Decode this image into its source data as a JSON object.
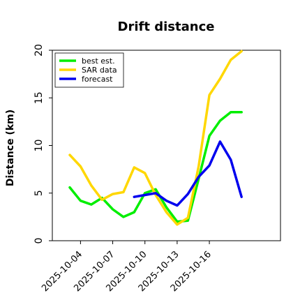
{
  "chart_data": {
    "type": "line",
    "title": "Drift distance",
    "xlabel": "",
    "ylabel": "Distance (km)",
    "ylim": [
      0,
      20
    ],
    "yticks": [
      0,
      5,
      10,
      15,
      20
    ],
    "xlim": [
      "2025-10-01T09:00",
      "2025-10-22T15:00"
    ],
    "xticks": [
      "2025-10-04",
      "2025-10-07",
      "2025-10-10",
      "2025-10-13",
      "2025-10-16"
    ],
    "grid": false,
    "legend_position": "top-left",
    "series": [
      {
        "name": "best est.",
        "color": "#00ee00",
        "x": [
          "2025-10-03",
          "2025-10-04",
          "2025-10-05",
          "2025-10-06",
          "2025-10-07",
          "2025-10-08",
          "2025-10-09",
          "2025-10-10",
          "2025-10-11",
          "2025-10-12",
          "2025-10-13",
          "2025-10-14",
          "2025-10-15",
          "2025-10-16",
          "2025-10-17",
          "2025-10-18",
          "2025-10-19"
        ],
        "values": [
          5.6,
          4.2,
          3.8,
          4.5,
          3.3,
          2.5,
          3.0,
          5.0,
          5.4,
          3.5,
          2.0,
          2.1,
          6.5,
          11.0,
          12.6,
          13.5,
          13.5
        ]
      },
      {
        "name": "SAR data",
        "color": "#ffd700",
        "x": [
          "2025-10-03",
          "2025-10-04",
          "2025-10-05",
          "2025-10-06",
          "2025-10-07",
          "2025-10-08",
          "2025-10-09",
          "2025-10-10",
          "2025-10-11",
          "2025-10-12",
          "2025-10-13",
          "2025-10-14",
          "2025-10-15",
          "2025-10-16",
          "2025-10-17",
          "2025-10-18",
          "2025-10-19"
        ],
        "values": [
          9.0,
          7.8,
          5.8,
          4.3,
          4.9,
          5.1,
          7.7,
          7.1,
          4.8,
          3.0,
          1.7,
          2.4,
          7.8,
          15.3,
          17.0,
          19.0,
          19.9
        ]
      },
      {
        "name": "forecast",
        "color": "#0000ee",
        "x": [
          "2025-10-09",
          "2025-10-10",
          "2025-10-11",
          "2025-10-12",
          "2025-10-13",
          "2025-10-14",
          "2025-10-15",
          "2025-10-16",
          "2025-10-17",
          "2025-10-18",
          "2025-10-19"
        ],
        "values": [
          4.6,
          4.8,
          5.0,
          4.2,
          3.7,
          4.9,
          6.7,
          7.9,
          10.4,
          8.5,
          4.6
        ]
      }
    ]
  }
}
